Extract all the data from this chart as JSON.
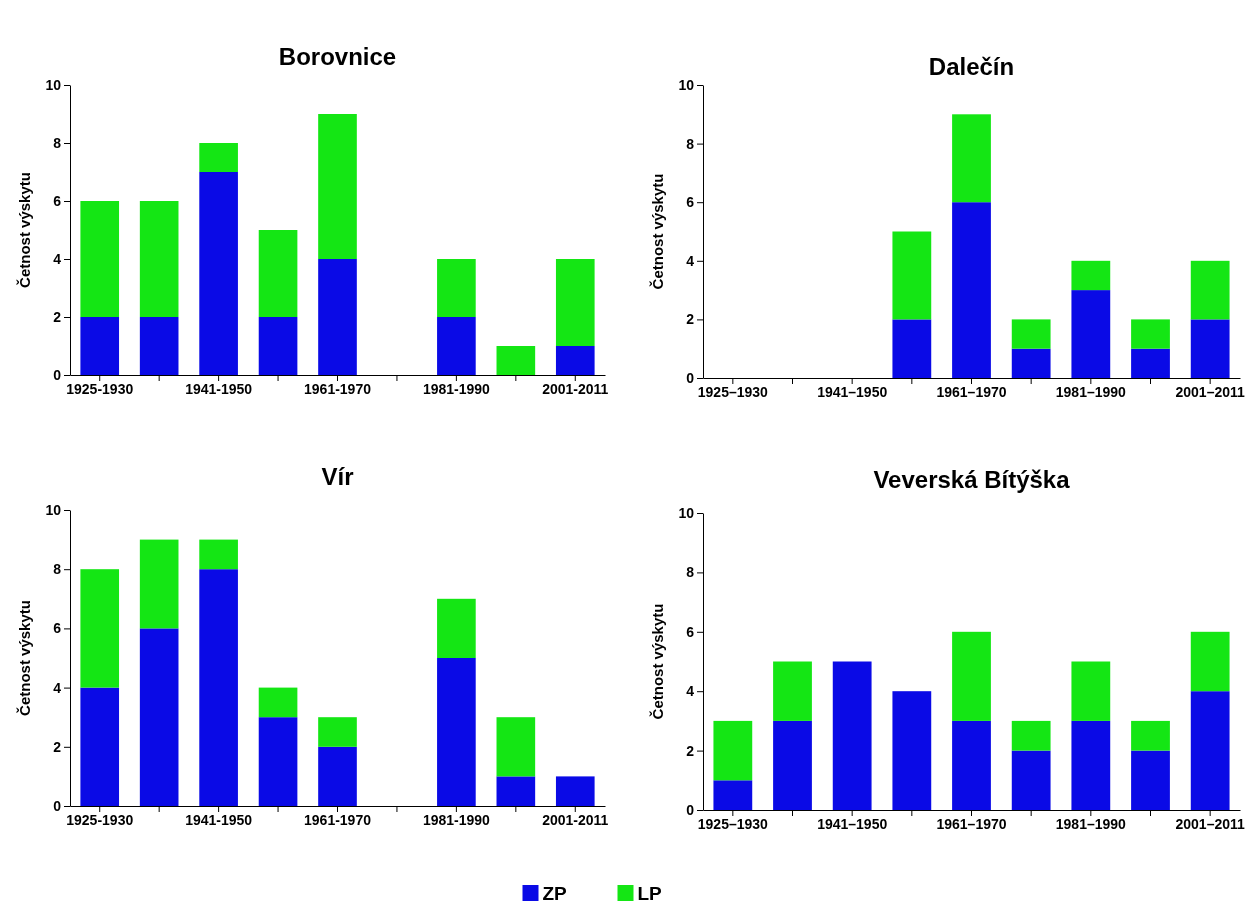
{
  "chart_data": [
    {
      "type": "bar",
      "title": "Borovnice",
      "ylabel": "Četnost výskytu",
      "categories": [
        "1925-1930",
        null,
        "1941-1950",
        null,
        "1961-1970",
        null,
        "1981-1990",
        null,
        "2001-2011"
      ],
      "stacked": true,
      "ylim": [
        0,
        10
      ],
      "yticks": [
        0,
        2,
        4,
        6,
        8,
        10
      ],
      "legend": "bottom",
      "series": [
        {
          "name": "ZP",
          "color": "#0a0ae6",
          "values": [
            2,
            2,
            7,
            2,
            4,
            0,
            2,
            0,
            1
          ]
        },
        {
          "name": "LP",
          "color": "#14e614",
          "values": [
            4,
            4,
            1,
            3,
            5,
            0,
            2,
            1,
            3
          ]
        }
      ]
    },
    {
      "type": "bar",
      "title": "Dalečín",
      "ylabel": "Četnost výskytu",
      "categories": [
        "1925–1930",
        null,
        "1941–1950",
        null,
        "1961–1970",
        null,
        "1981–1990",
        null,
        "2001–2011"
      ],
      "stacked": true,
      "ylim": [
        0,
        10
      ],
      "yticks": [
        0,
        2,
        4,
        6,
        8,
        10
      ],
      "series": [
        {
          "color": "#0a0ae6",
          "values": [
            0,
            0,
            0,
            2,
            6,
            1,
            3,
            1,
            2
          ]
        },
        {
          "color": "#14e614",
          "values": [
            0,
            0,
            0,
            3,
            3,
            1,
            1,
            1,
            2
          ]
        }
      ]
    },
    {
      "type": "bar",
      "title": "Vír",
      "ylabel": "Četnost výskytu",
      "categories": [
        "1925-1930",
        null,
        "1941-1950",
        null,
        "1961-1970",
        null,
        "1981-1990",
        null,
        "2001-2011"
      ],
      "stacked": true,
      "ylim": [
        0,
        10
      ],
      "yticks": [
        0,
        2,
        4,
        6,
        8,
        10
      ],
      "series": [
        {
          "color": "#0a0ae6",
          "values": [
            4,
            6,
            8,
            3,
            2,
            0,
            5,
            1,
            1
          ]
        },
        {
          "color": "#14e614",
          "values": [
            4,
            3,
            1,
            1,
            1,
            0,
            2,
            2,
            0
          ]
        }
      ]
    },
    {
      "type": "bar",
      "title": "Veverská Bítýška",
      "ylabel": "Četnost výskytu",
      "categories": [
        "1925–1930",
        null,
        "1941–1950",
        null,
        "1961–1970",
        null,
        "1981–1990",
        null,
        "2001–2011"
      ],
      "stacked": true,
      "ylim": [
        0,
        10
      ],
      "yticks": [
        0,
        2,
        4,
        6,
        8,
        10
      ],
      "series": [
        {
          "color": "#0a0ae6",
          "values": [
            1,
            3,
            5,
            4,
            3,
            2,
            3,
            2,
            4
          ]
        },
        {
          "color": "#14e614",
          "values": [
            2,
            2,
            0,
            0,
            3,
            1,
            2,
            1,
            2
          ]
        }
      ]
    }
  ]
}
